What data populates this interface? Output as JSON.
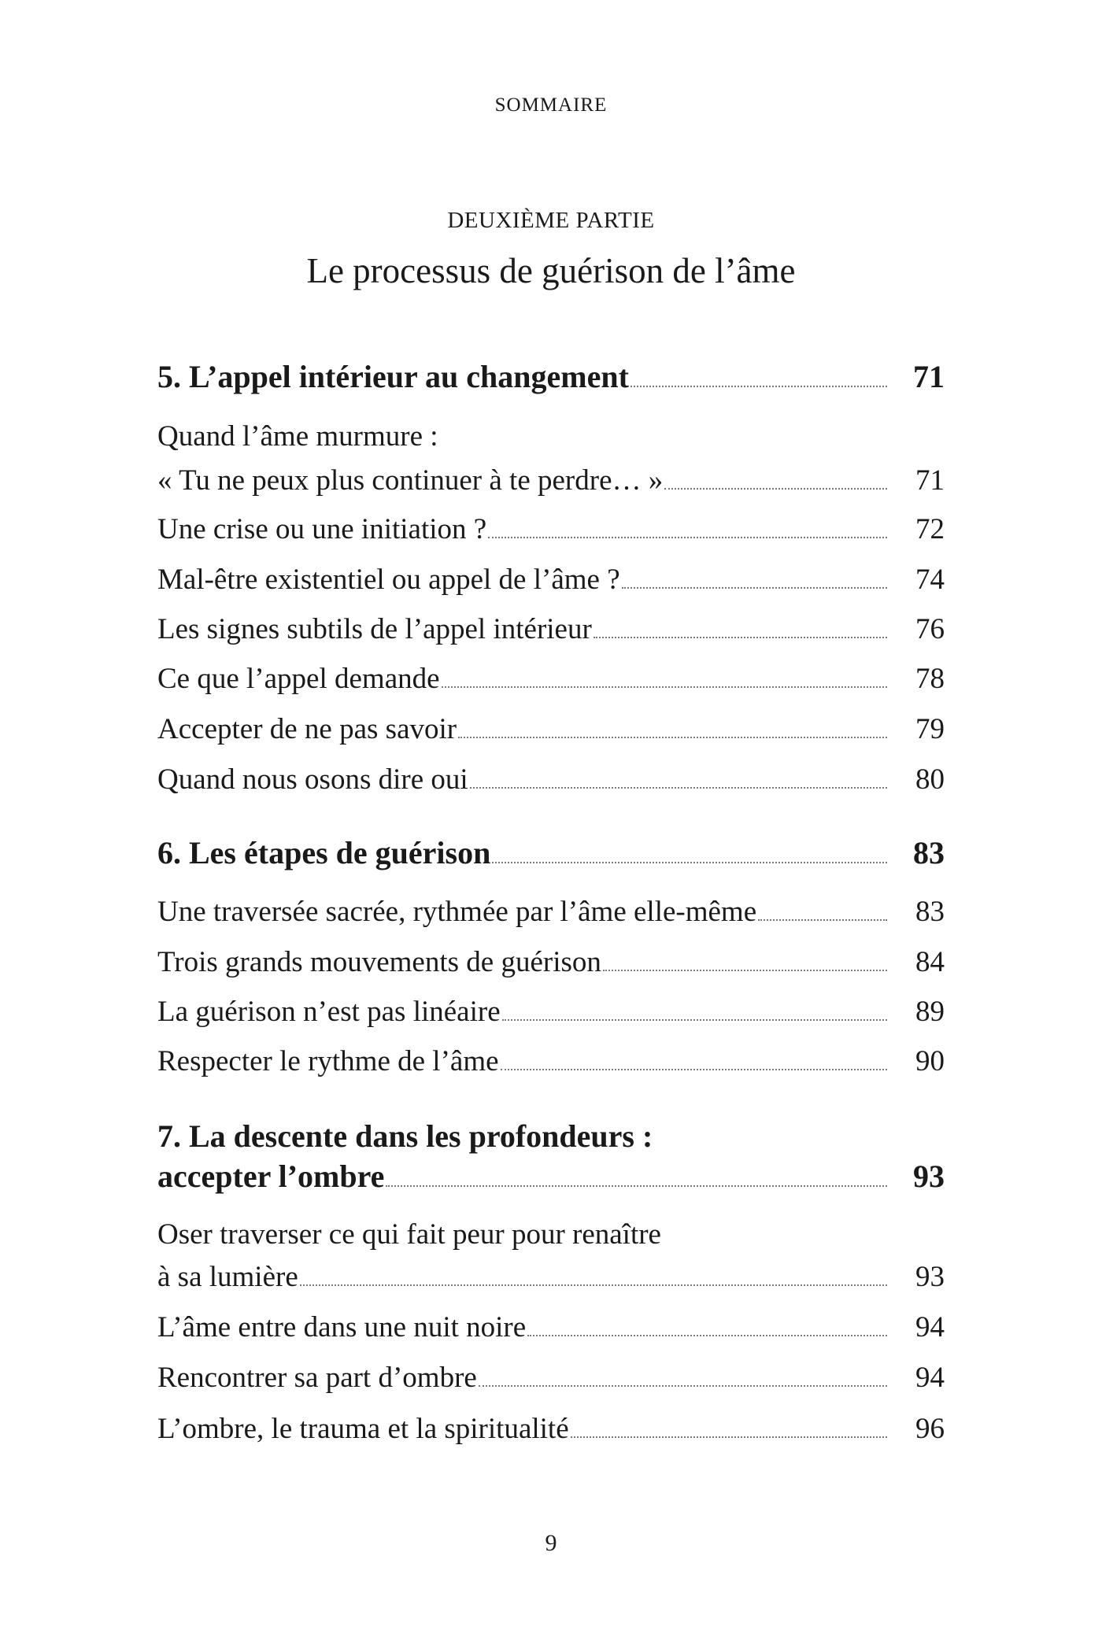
{
  "running_head": "SOMMAIRE",
  "part_label": "DEUXIÈME PARTIE",
  "part_title": "Le processus de guérison de l’âme",
  "entries": [
    {
      "text": "5. L’appel intérieur au changement",
      "page": "71",
      "chapter": true
    },
    {
      "text": "Quand l’âme murmure :",
      "page": ""
    },
    {
      "text": "« Tu ne peux plus continuer à te perdre… »",
      "page": "71"
    },
    {
      "text": "Une crise ou une initiation ?",
      "page": "72"
    },
    {
      "text": "Mal-être existentiel ou appel de l’âme ?",
      "page": "74"
    },
    {
      "text": "Les signes subtils de l’appel intérieur",
      "page": "76"
    },
    {
      "text": "Ce que l’appel demande",
      "page": "78"
    },
    {
      "text": "Accepter de ne pas savoir",
      "page": "79"
    },
    {
      "text": "Quand nous osons dire oui",
      "page": "80"
    },
    {
      "text": "6. Les étapes de guérison",
      "page": "83",
      "chapter": true
    },
    {
      "text": "Une traversée sacrée, rythmée par l’âme elle-même",
      "page": "83"
    },
    {
      "text": "Trois grands mouvements de guérison",
      "page": "84"
    },
    {
      "text": "La guérison n’est pas linéaire",
      "page": "89"
    },
    {
      "text": "Respecter le rythme de l’âme",
      "page": "90"
    },
    {
      "text": "7. La descente dans les profondeurs :",
      "page": "",
      "chapter": true
    },
    {
      "text": "accepter l’ombre",
      "page": "93",
      "chapter": true
    },
    {
      "text": "Oser traverser ce qui fait peur pour renaître",
      "page": ""
    },
    {
      "text": "à sa lumière",
      "page": "93"
    },
    {
      "text": "L’âme entre dans une nuit noire",
      "page": "94"
    },
    {
      "text": "Rencontrer sa part d’ombre",
      "page": "94"
    },
    {
      "text": "L’ombre, le trauma et la spiritualité",
      "page": "96"
    }
  ],
  "folio": "9"
}
